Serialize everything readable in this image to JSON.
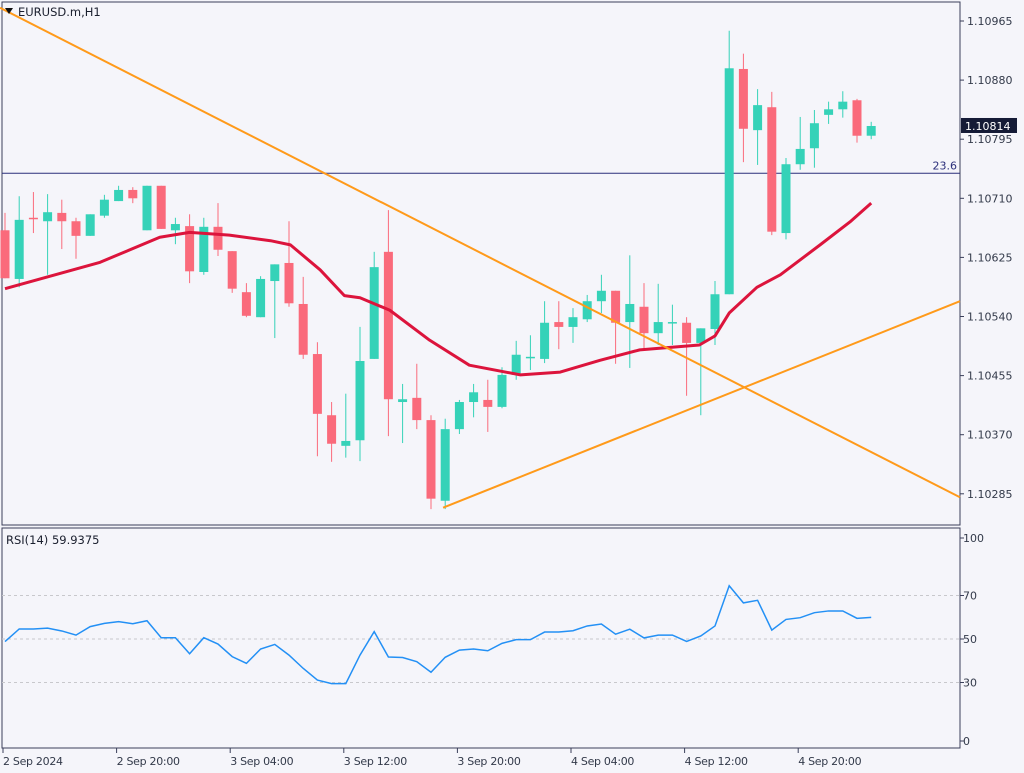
{
  "header": {
    "symbol_title": "EURUSD.m,H1",
    "menu_icon": "triangle-down-icon"
  },
  "colors": {
    "bull": "#35d2b8",
    "bear": "#fa6a7b",
    "ma": "#dc143c",
    "trendline": "#ff9a1a",
    "rsi": "#2390f5",
    "fib": "#2b2f7a",
    "price_tag_bg": "#151b36",
    "background": "#f5f5fa"
  },
  "chart_data": [
    {
      "type": "candlestick",
      "title": "EURUSD.m,H1",
      "price_axis_ticks": [
        "1.10965",
        "1.10880",
        "1.10795",
        "1.10710",
        "1.10625",
        "1.10540",
        "1.10455",
        "1.10370",
        "1.10285"
      ],
      "price_axis_range": [
        1.10254,
        1.10995
      ],
      "current_price_label": "1.10814",
      "time_axis_ticks": [
        {
          "index": 0,
          "label": "2 Sep 2024"
        },
        {
          "index": 8,
          "label": "2 Sep 20:00"
        },
        {
          "index": 16,
          "label": "3 Sep 04:00"
        },
        {
          "index": 24,
          "label": "3 Sep 12:00"
        },
        {
          "index": 32,
          "label": "3 Sep 20:00"
        },
        {
          "index": 40,
          "label": "4 Sep 04:00"
        },
        {
          "index": 48,
          "label": "4 Sep 12:00"
        },
        {
          "index": 56,
          "label": "4 Sep 20:00"
        }
      ],
      "ohlc": [
        [
          1.10664,
          1.10689,
          1.10595,
          1.10595
        ],
        [
          1.10594,
          1.10713,
          1.10582,
          1.10679
        ],
        [
          1.10682,
          1.10719,
          1.1066,
          1.1068
        ],
        [
          1.10677,
          1.10716,
          1.106,
          1.1069
        ],
        [
          1.10689,
          1.10708,
          1.10637,
          1.10677
        ],
        [
          1.10677,
          1.10682,
          1.10623,
          1.10656
        ],
        [
          1.10656,
          1.10687,
          1.10656,
          1.10687
        ],
        [
          1.10685,
          1.10715,
          1.10682,
          1.10708
        ],
        [
          1.10706,
          1.10728,
          1.10706,
          1.10722
        ],
        [
          1.10722,
          1.10726,
          1.10703,
          1.1071
        ],
        [
          1.10664,
          1.10728,
          1.10664,
          1.10728
        ],
        [
          1.10728,
          1.10728,
          1.10666,
          1.10666
        ],
        [
          1.10664,
          1.10682,
          1.10644,
          1.10673
        ],
        [
          1.1067,
          1.10687,
          1.10588,
          1.10605
        ],
        [
          1.10604,
          1.10682,
          1.106,
          1.10669
        ],
        [
          1.10669,
          1.10703,
          1.10627,
          1.10636
        ],
        [
          1.10634,
          1.10634,
          1.10574,
          1.1058
        ],
        [
          1.10575,
          1.10588,
          1.10539,
          1.10541
        ],
        [
          1.10539,
          1.10598,
          1.10539,
          1.10594
        ],
        [
          1.10591,
          1.10615,
          1.10509,
          1.10615
        ],
        [
          1.10617,
          1.10677,
          1.10554,
          1.10559
        ],
        [
          1.10558,
          1.10597,
          1.10479,
          1.10485
        ],
        [
          1.10486,
          1.10503,
          1.10339,
          1.104
        ],
        [
          1.10398,
          1.10417,
          1.10331,
          1.10357
        ],
        [
          1.10354,
          1.10429,
          1.10337,
          1.10361
        ],
        [
          1.10362,
          1.10525,
          1.10332,
          1.10476
        ],
        [
          1.10479,
          1.10633,
          1.10479,
          1.10611
        ],
        [
          1.10633,
          1.10693,
          1.10368,
          1.10421
        ],
        [
          1.10417,
          1.10443,
          1.10358,
          1.10421
        ],
        [
          1.10423,
          1.10472,
          1.10378,
          1.10391
        ],
        [
          1.10391,
          1.10398,
          1.10263,
          1.10278
        ],
        [
          1.10275,
          1.10393,
          1.10263,
          1.10378
        ],
        [
          1.10378,
          1.1042,
          1.10371,
          1.10417
        ],
        [
          1.10417,
          1.10443,
          1.10395,
          1.10431
        ],
        [
          1.1042,
          1.10449,
          1.10374,
          1.1041
        ],
        [
          1.1041,
          1.10467,
          1.10408,
          1.10456
        ],
        [
          1.10456,
          1.10505,
          1.10449,
          1.10485
        ],
        [
          1.1048,
          1.10513,
          1.10463,
          1.10482
        ],
        [
          1.10479,
          1.10562,
          1.10473,
          1.10531
        ],
        [
          1.10532,
          1.10562,
          1.10493,
          1.10525
        ],
        [
          1.10525,
          1.10552,
          1.10502,
          1.10539
        ],
        [
          1.10536,
          1.10571,
          1.10532,
          1.10562
        ],
        [
          1.10562,
          1.106,
          1.10545,
          1.10577
        ],
        [
          1.10577,
          1.10577,
          1.10472,
          1.10531
        ],
        [
          1.10532,
          1.10628,
          1.10466,
          1.10558
        ],
        [
          1.10554,
          1.10588,
          1.10493,
          1.10516
        ],
        [
          1.10516,
          1.10587,
          1.10499,
          1.10532
        ],
        [
          1.10531,
          1.10557,
          1.10499,
          1.10532
        ],
        [
          1.10531,
          1.10539,
          1.10426,
          1.10502
        ],
        [
          1.10502,
          1.10523,
          1.10398,
          1.10523
        ],
        [
          1.10522,
          1.10591,
          1.10499,
          1.10572
        ],
        [
          1.10572,
          1.10951,
          1.10572,
          1.10897
        ],
        [
          1.10896,
          1.10918,
          1.10762,
          1.1081
        ],
        [
          1.10808,
          1.10867,
          1.10758,
          1.10844
        ],
        [
          1.10841,
          1.10863,
          1.10657,
          1.10662
        ],
        [
          1.1066,
          1.10768,
          1.10651,
          1.10759
        ],
        [
          1.10759,
          1.10827,
          1.10751,
          1.10781
        ],
        [
          1.10782,
          1.10837,
          1.10754,
          1.10818
        ],
        [
          1.1083,
          1.10849,
          1.10817,
          1.10838
        ],
        [
          1.10838,
          1.10864,
          1.10826,
          1.10849
        ],
        [
          1.10851,
          1.10853,
          1.1079,
          1.108
        ],
        [
          1.108,
          1.1082,
          1.10795,
          1.10814
        ]
      ],
      "moving_average": [
        [
          0,
          1.1058
        ],
        [
          6.7,
          1.10618
        ],
        [
          10.9,
          1.10654
        ],
        [
          13,
          1.10661
        ],
        [
          15.8,
          1.10657
        ],
        [
          18.7,
          1.10649
        ],
        [
          20.1,
          1.10643
        ],
        [
          22.2,
          1.10607
        ],
        [
          23.9,
          1.1057
        ],
        [
          25,
          1.10567
        ],
        [
          27.1,
          1.10549
        ],
        [
          29.9,
          1.10506
        ],
        [
          32.7,
          1.1047
        ],
        [
          36.3,
          1.10456
        ],
        [
          39.1,
          1.1046
        ],
        [
          41.9,
          1.10477
        ],
        [
          44.7,
          1.10492
        ],
        [
          48.9,
          1.10499
        ],
        [
          50,
          1.10512
        ],
        [
          51,
          1.10545
        ],
        [
          52.95,
          1.10582
        ],
        [
          54.6,
          1.106
        ],
        [
          57.4,
          1.10643
        ],
        [
          59.5,
          1.10676
        ],
        [
          61,
          1.10703
        ]
      ],
      "trendlines": [
        {
          "from": [
            -0.35,
            1.10984
          ],
          "to": [
            67.25,
            1.1028
          ]
        },
        {
          "from": [
            30.85,
            1.10265
          ],
          "to": [
            67.25,
            1.10562
          ]
        }
      ],
      "fib_level": {
        "label": "23.6",
        "price": 1.10746
      }
    },
    {
      "type": "line",
      "title": "RSI(14) 59.9375",
      "ylim": [
        0,
        100
      ],
      "y_ticks": [
        "100",
        "70",
        "50",
        "30",
        "0"
      ],
      "levels": [
        70,
        50,
        30
      ],
      "values": [
        48.8,
        54.6,
        54.6,
        55,
        53.7,
        51.8,
        55.7,
        57.2,
        58,
        57,
        58.4,
        50.6,
        50.6,
        43.2,
        50.6,
        47.7,
        41.9,
        38.8,
        45.4,
        47.5,
        42.6,
        36.5,
        31.1,
        29.5,
        29.5,
        42.6,
        53.4,
        41.7,
        41.5,
        39.6,
        34.7,
        41.6,
        44.9,
        45.4,
        44.6,
        48,
        49.7,
        49.7,
        53.2,
        53.2,
        53.8,
        56,
        56.9,
        52.2,
        54.5,
        50.5,
        51.8,
        51.8,
        48.9,
        51.4,
        56,
        74.5,
        66.6,
        67.8,
        54.1,
        59,
        59.8,
        62.1,
        62.9,
        62.9,
        59.5,
        59.94
      ]
    }
  ]
}
